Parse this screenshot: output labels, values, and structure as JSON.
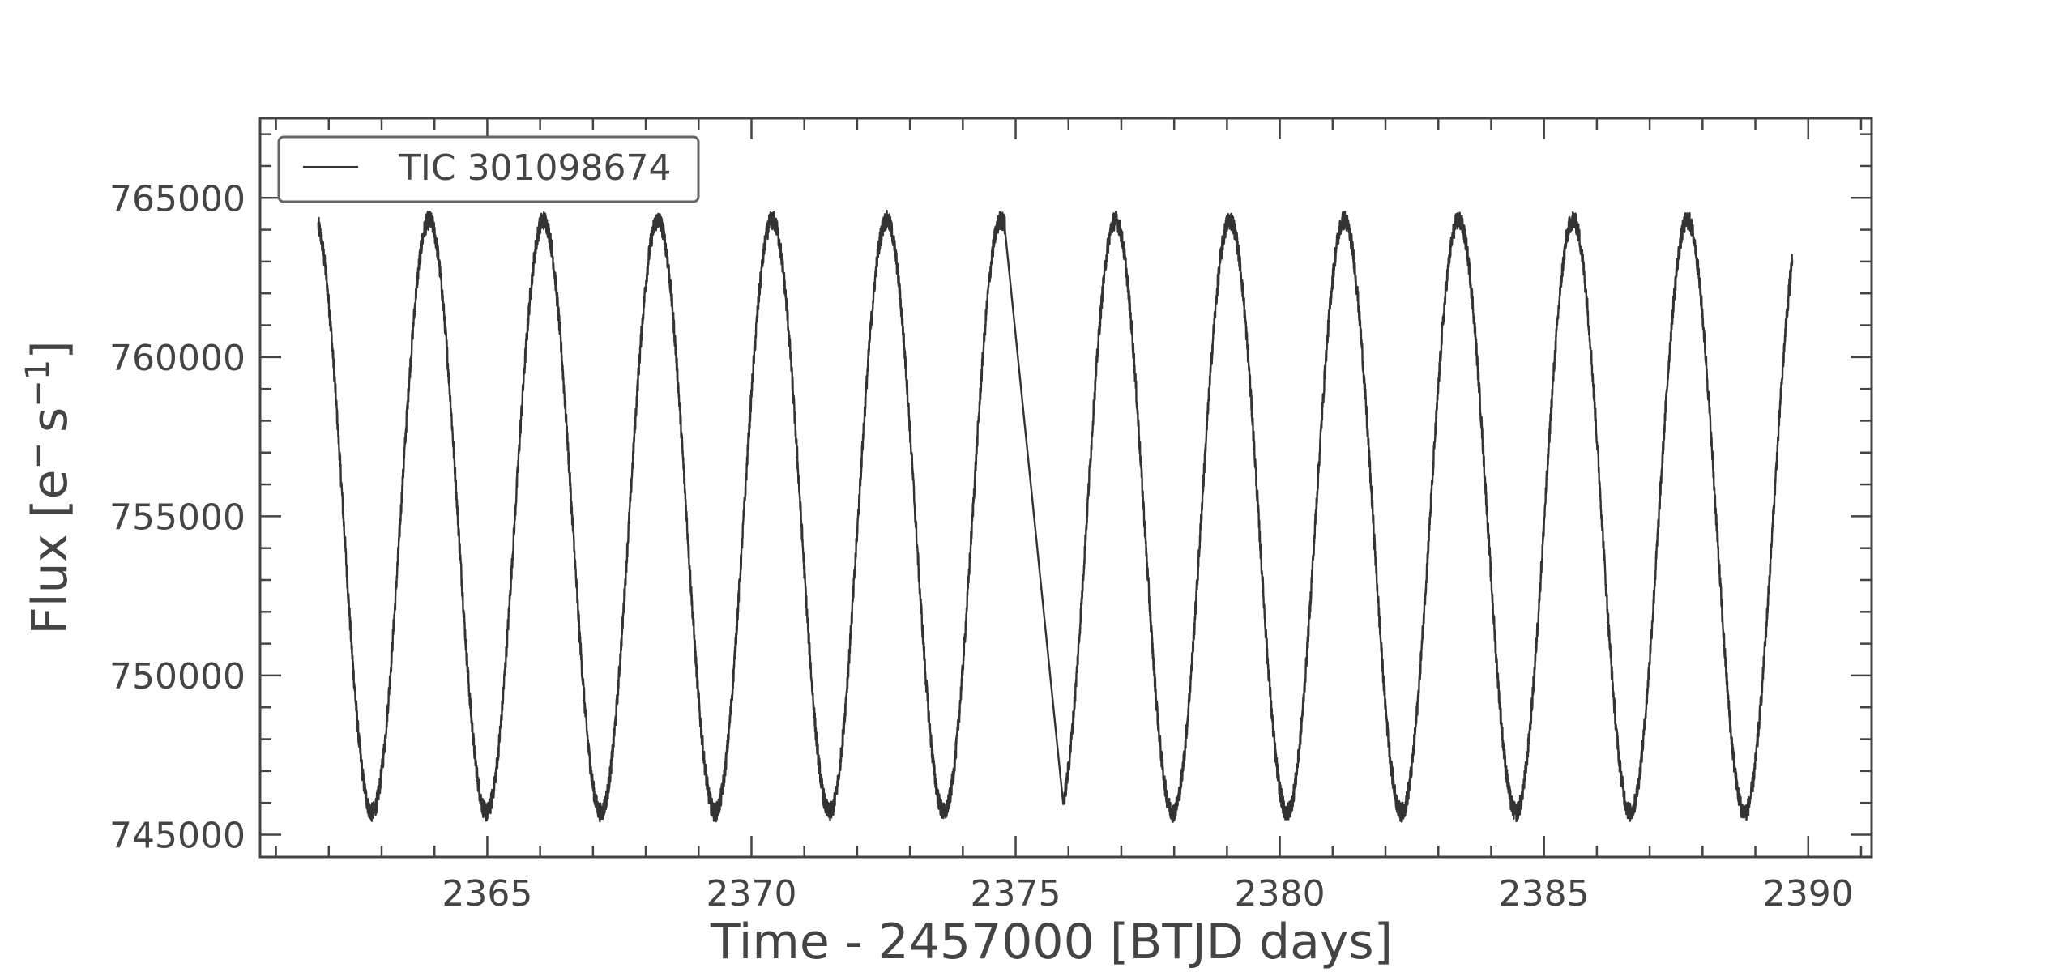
{
  "chart_data": {
    "type": "line",
    "xlabel": "Time - 2457000 [BTJD days]",
    "ylabel_main": "Flux [e",
    "ylabel_sup1": "−",
    "ylabel_mid": "s",
    "ylabel_sup2": "−1",
    "ylabel_end": "]",
    "xlim": [
      2360.7,
      2391.2
    ],
    "ylim": [
      744300,
      767500
    ],
    "x_ticks": [
      2365,
      2370,
      2375,
      2380,
      2385,
      2390
    ],
    "x_tick_labels": [
      "2365",
      "2370",
      "2375",
      "2380",
      "2385",
      "2390"
    ],
    "y_ticks": [
      745000,
      750000,
      755000,
      760000,
      765000
    ],
    "y_tick_labels": [
      "745000",
      "750000",
      "755000",
      "760000",
      "765000"
    ],
    "grid": false,
    "legend": {
      "position": "top-left",
      "entries": [
        "TIC 301098674"
      ]
    },
    "series": [
      {
        "name": "TIC 301098674",
        "color": "#333333",
        "x_start": 2361.8,
        "x_end": 2389.7,
        "gap": [
          2374.8,
          2375.9
        ],
        "period_days": 2.165,
        "max_epoch": 2363.9,
        "mean_flux": 755000,
        "amplitude": 9300,
        "noise": 300
      }
    ]
  }
}
